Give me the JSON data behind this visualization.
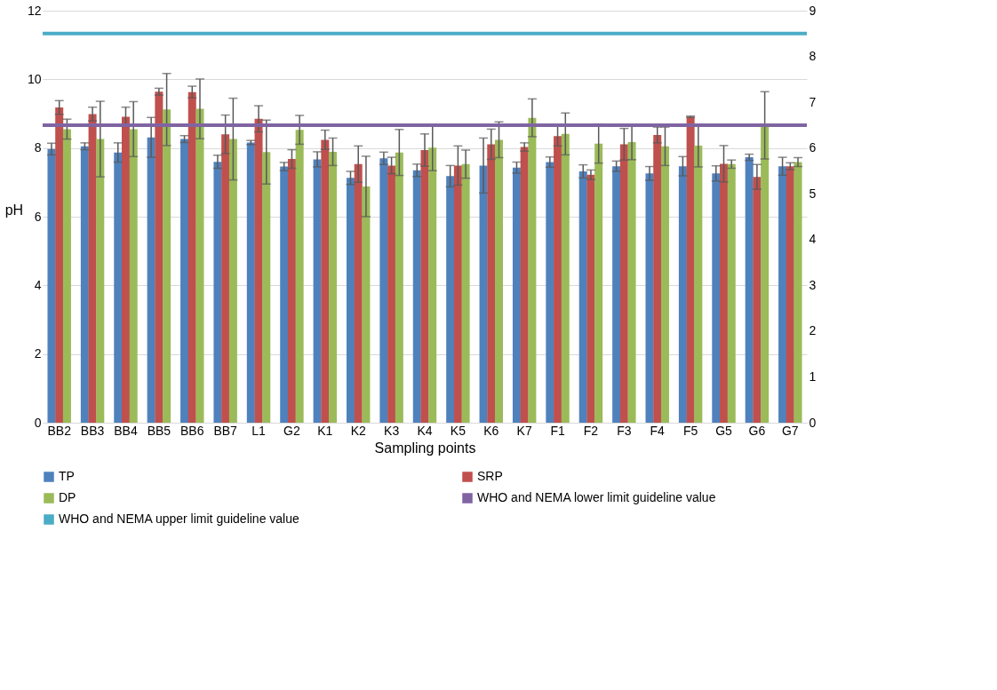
{
  "chart_data": {
    "type": "bar",
    "xlabel": "Sampling points",
    "ylabel": "pH",
    "categories": [
      "BB2",
      "BB3",
      "BB4",
      "BB5",
      "BB6",
      "BB7",
      "L1",
      "G2",
      "K1",
      "K2",
      "K3",
      "K4",
      "K5",
      "K6",
      "K7",
      "F1",
      "F2",
      "F3",
      "F4",
      "F5",
      "G5",
      "G6",
      "G7"
    ],
    "series": [
      {
        "name": "TP",
        "color": "#4f81bd",
        "values": [
          7.97,
          8.05,
          7.87,
          8.31,
          8.26,
          7.6,
          8.16,
          7.46,
          7.67,
          7.13,
          7.7,
          7.35,
          7.18,
          7.49,
          7.43,
          7.59,
          7.32,
          7.47,
          7.26,
          7.47,
          7.26,
          7.73,
          7.47
        ],
        "errors": [
          0.17,
          0.1,
          0.28,
          0.58,
          0.1,
          0.19,
          0.06,
          0.12,
          0.22,
          0.19,
          0.18,
          0.18,
          0.31,
          0.8,
          0.16,
          0.15,
          0.19,
          0.15,
          0.2,
          0.28,
          0.22,
          0.09,
          0.26
        ]
      },
      {
        "name": "SRP",
        "color": "#c0504d",
        "values": [
          9.18,
          8.99,
          8.91,
          9.64,
          9.63,
          8.4,
          8.85,
          7.68,
          8.24,
          7.53,
          7.49,
          7.94,
          7.49,
          8.11,
          8.03,
          8.35,
          7.22,
          8.11,
          8.38,
          8.91,
          7.54,
          7.16,
          7.47
        ],
        "errors": [
          0.2,
          0.2,
          0.28,
          0.1,
          0.17,
          0.56,
          0.38,
          0.27,
          0.28,
          0.53,
          0.24,
          0.47,
          0.57,
          0.44,
          0.12,
          0.29,
          0.14,
          0.46,
          0.23,
          0.02,
          0.53,
          0.36,
          0.1
        ]
      },
      {
        "name": "DP",
        "color": "#9bbb59",
        "values": [
          8.55,
          8.26,
          8.55,
          9.12,
          9.14,
          8.26,
          7.88,
          8.53,
          7.89,
          6.88,
          7.87,
          8.01,
          7.53,
          8.24,
          8.88,
          8.41,
          8.13,
          8.17,
          8.05,
          8.07,
          7.53,
          8.66,
          7.59
        ],
        "errors": [
          0.29,
          1.1,
          0.8,
          1.05,
          0.87,
          1.19,
          0.93,
          0.42,
          0.4,
          0.88,
          0.67,
          0.67,
          0.41,
          0.52,
          0.55,
          0.61,
          0.57,
          0.51,
          0.56,
          0.62,
          0.12,
          0.98,
          0.13
        ]
      }
    ],
    "ylim": [
      0,
      12
    ],
    "yticks": [
      0,
      2,
      4,
      6,
      8,
      10,
      12
    ],
    "y2lim": [
      0,
      9
    ],
    "y2ticks": [
      0,
      1,
      2,
      3,
      4,
      5,
      6,
      7,
      8,
      9
    ],
    "ref_lines": [
      {
        "axis": "y2",
        "value": 6.5,
        "label": "WHO and NEMA lower limit guideline value",
        "color": "#8064a2"
      },
      {
        "axis": "y2",
        "value": 8.5,
        "label": "WHO and NEMA upper limit guideline value",
        "color": "#4bacc6"
      }
    ],
    "grid": "y",
    "legend": "bottom"
  }
}
